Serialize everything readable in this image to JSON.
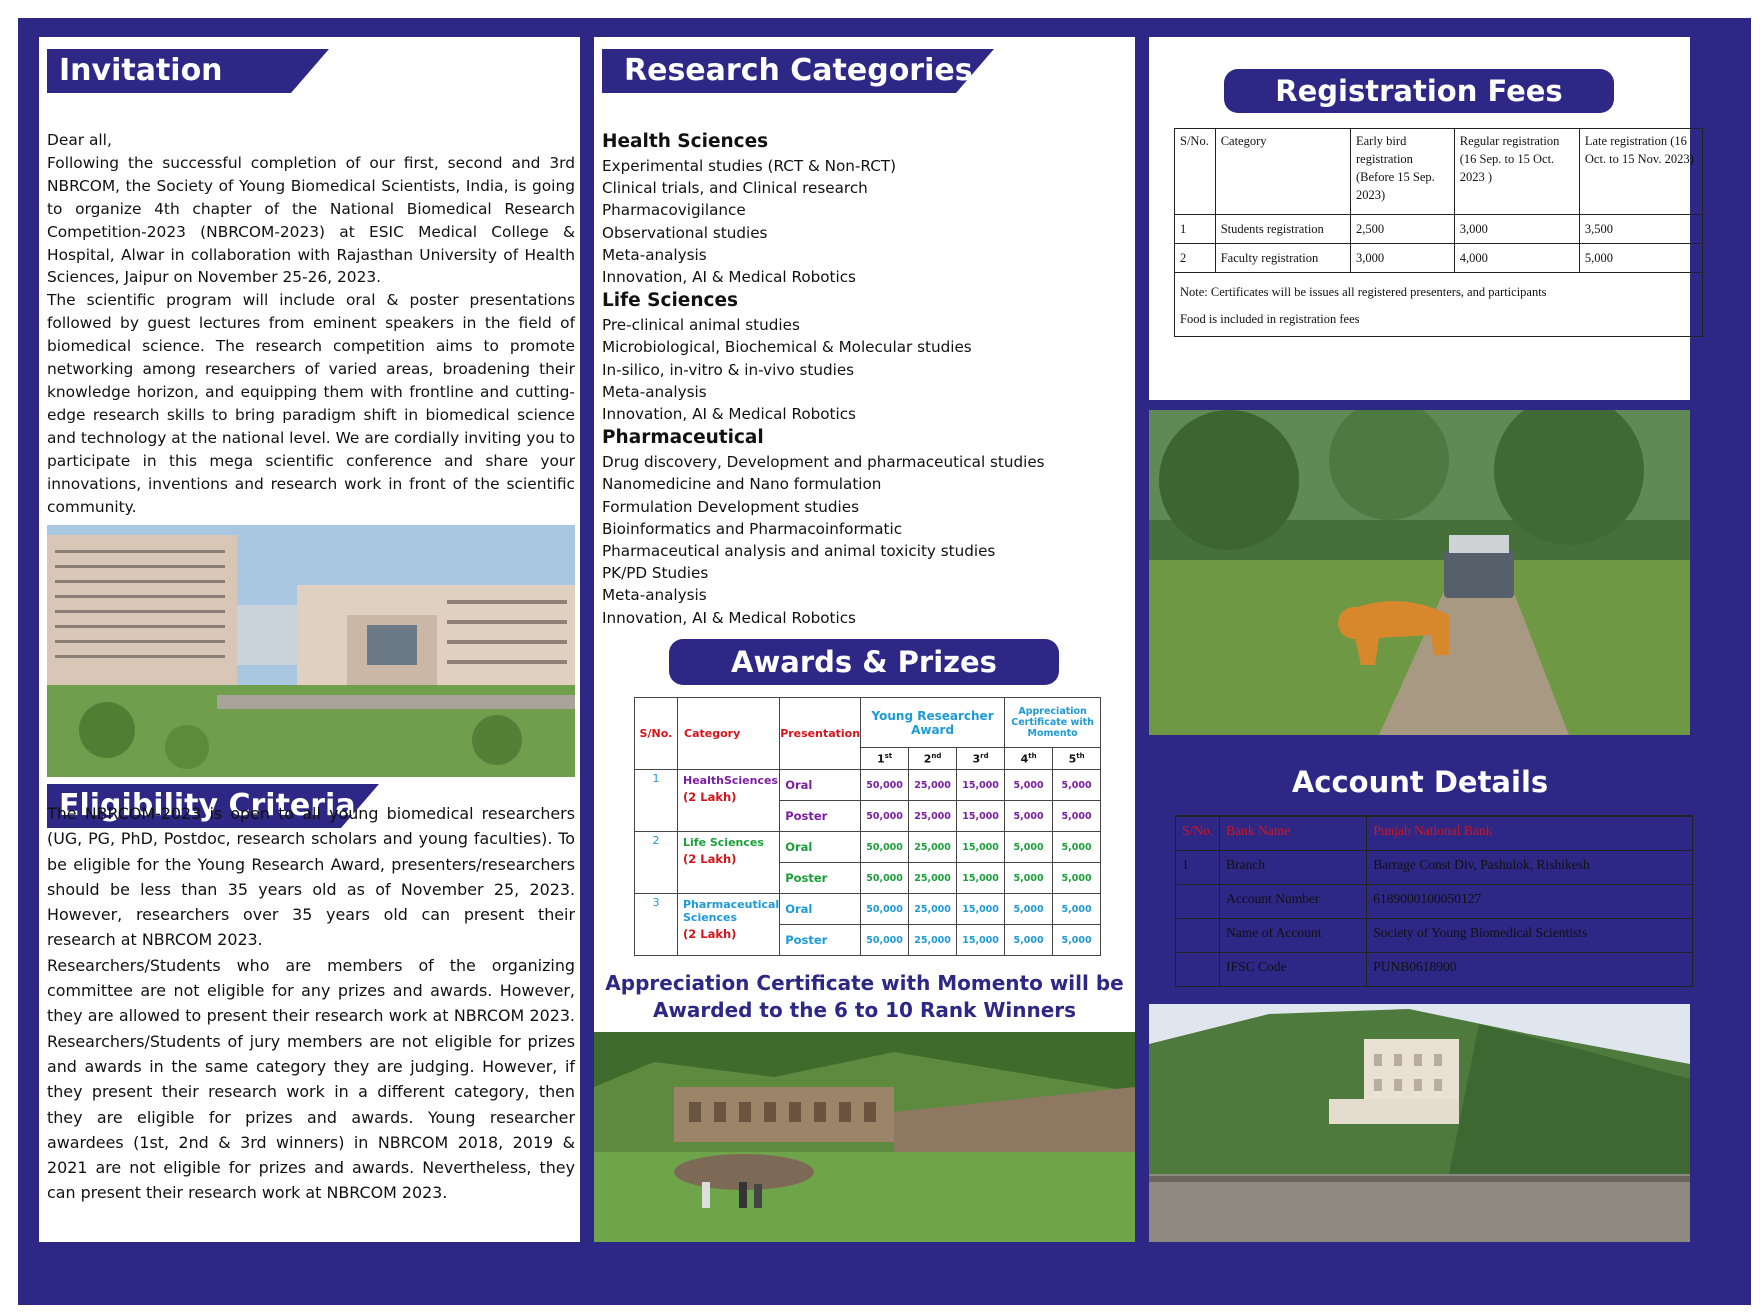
{
  "invitation": {
    "heading": "Invitation",
    "paragraphs": [
      "Dear all,",
      "Following the successful completion of our first, second and 3rd NBRCOM, the Society of Young Biomedical Scientists, India, is going to organize 4th chapter of the National Biomedical Research Competition-2023 (NBRCOM-2023) at ESIC Medical College & Hospital, Alwar in collaboration with Rajasthan University of Health Sciences, Jaipur on November 25-26, 2023.",
      "The scientific program will include oral & poster presentations followed by guest lectures from eminent speakers in the field of biomedical science. The research competition aims to promote networking among researchers of varied areas, broadening their knowledge horizon, and equipping them with frontline and cutting-edge research skills to bring paradigm shift in biomedical science and technology at the national level. We are cordially inviting you to participate in this mega scientific conference and share your innovations, inventions and research work in front of the scientific community."
    ]
  },
  "eligibility": {
    "heading": "Eligibility Criteria",
    "paragraphs": [
      "The NBRCOM-2023 is open to all young biomedical researchers (UG, PG, PhD, Postdoc, research scholars and young faculties). To be eligible for the Young Research Award, presenters/researchers should be less than 35 years old as of November 25, 2023. However, researchers over 35 years old can present their research at NBRCOM 2023.",
      "Researchers/Students who are members of the organizing committee are not eligible for any prizes and awards. However, they are allowed to present their research work at NBRCOM 2023. Researchers/Students of jury members are not eligible for prizes and awards in the same category they are judging. However, if they present their research work in a different category, then they are eligible for prizes and awards. Young researcher awardees (1st, 2nd & 3rd winners) in NBRCOM 2018, 2019 & 2021 are not eligible for prizes and awards. Nevertheless, they can present their research work at NBRCOM 2023."
    ]
  },
  "research": {
    "heading": "Research Categories",
    "groups": [
      {
        "title": "Health Sciences",
        "items": [
          "Experimental studies (RCT & Non-RCT)",
          "Clinical trials, and Clinical research",
          "Pharmacovigilance",
          "Observational studies",
          "Meta-analysis",
          "Innovation, AI & Medical Robotics"
        ]
      },
      {
        "title": "Life Sciences",
        "items": [
          "Pre-clinical animal studies",
          "Microbiological, Biochemical & Molecular studies",
          "In-silico, in-vitro & in-vivo studies",
          "Meta-analysis",
          "Innovation, AI & Medical Robotics"
        ]
      },
      {
        "title": "Pharmaceutical",
        "items": [
          "Drug discovery, Development and pharmaceutical studies",
          "Nanomedicine and Nano formulation",
          "Formulation Development studies",
          "Bioinformatics and Pharmacoinformatic",
          "Pharmaceutical analysis and animal toxicity studies",
          "PK/PD Studies",
          "Meta-analysis",
          "Innovation, AI & Medical Robotics"
        ]
      }
    ]
  },
  "awards": {
    "heading": "Awards & Prizes",
    "col_sno": "S/No.",
    "col_category": "Category",
    "col_presentation": "Presentation",
    "col_young": "Young Researcher Award",
    "col_appreciation": "Appreciation Certificate with Momento",
    "ranks": [
      {
        "n": "1",
        "sup": "st"
      },
      {
        "n": "2",
        "sup": "nd"
      },
      {
        "n": "3",
        "sup": "rd"
      },
      {
        "n": "4",
        "sup": "th"
      },
      {
        "n": "5",
        "sup": "th"
      }
    ],
    "rows": [
      {
        "sno": "1",
        "category": "HealthSciences",
        "prize": "(2 Lakh)",
        "color": "purple",
        "modes": [
          {
            "mode": "Oral",
            "amounts": [
              "50,000",
              "25,000",
              "15,000",
              "5,000",
              "5,000"
            ]
          },
          {
            "mode": "Poster",
            "amounts": [
              "50,000",
              "25,000",
              "15,000",
              "5,000",
              "5,000"
            ]
          }
        ]
      },
      {
        "sno": "2",
        "category": "Life Sciences",
        "prize": "(2 Lakh)",
        "color": "green",
        "modes": [
          {
            "mode": "Oral",
            "amounts": [
              "50,000",
              "25,000",
              "15,000",
              "5,000",
              "5,000"
            ]
          },
          {
            "mode": "Poster",
            "amounts": [
              "50,000",
              "25,000",
              "15,000",
              "5,000",
              "5,000"
            ]
          }
        ]
      },
      {
        "sno": "3",
        "category": "Pharmaceutical Sciences",
        "prize": "(2 Lakh)",
        "color": "blue",
        "modes": [
          {
            "mode": "Oral",
            "amounts": [
              "50,000",
              "25,000",
              "15,000",
              "5,000",
              "5,000"
            ]
          },
          {
            "mode": "Poster",
            "amounts": [
              "50,000",
              "25,000",
              "15,000",
              "5,000",
              "5,000"
            ]
          }
        ]
      }
    ],
    "note": "Appreciation Certificate with Momento will be Awarded to the 6 to 10 Rank Winners"
  },
  "registration": {
    "heading": "Registration Fees",
    "headers": [
      "S/No.",
      "Category",
      "Early bird registration (Before 15 Sep. 2023)",
      "Regular registration (16 Sep. to 15 Oct. 2023 )",
      "Late registration (16 Oct. to 15 Nov. 2023)"
    ],
    "rows": [
      [
        "1",
        "Students registration",
        "2,500",
        "3,000",
        "3,500"
      ],
      [
        "2",
        "Faculty registration",
        "3,000",
        "4,000",
        "5,000"
      ]
    ],
    "notes": [
      "Note: Certificates will be issues all registered presenters, and participants",
      "Food is included in registration fees"
    ]
  },
  "account": {
    "heading": "Account Details",
    "rows": [
      [
        "S/No.",
        "Bank Name",
        "Punjab National Bank"
      ],
      [
        "1",
        "Branch",
        "Barrage Const Div, Pashulok, Rishikesh"
      ],
      [
        "",
        "Account Number",
        "6189000100050127"
      ],
      [
        "",
        "Name of Account",
        "Society of Young Biomedical Scientists"
      ],
      [
        "",
        "IFSC Code",
        "PUNB0618900"
      ]
    ]
  },
  "colors": {
    "brand_navy": "#2d2785",
    "label_red": "#d4141b",
    "health_purple": "#7b1fa2",
    "life_green": "#1b9f3a",
    "pharma_blue": "#1e9ad6"
  }
}
